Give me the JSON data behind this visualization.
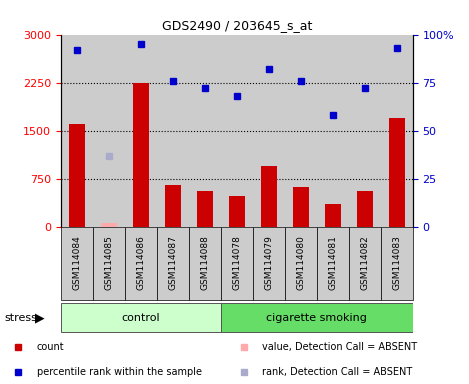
{
  "title": "GDS2490 / 203645_s_at",
  "samples": [
    "GSM114084",
    "GSM114085",
    "GSM114086",
    "GSM114087",
    "GSM114088",
    "GSM114078",
    "GSM114079",
    "GSM114080",
    "GSM114081",
    "GSM114082",
    "GSM114083"
  ],
  "counts": [
    1600,
    60,
    2250,
    650,
    560,
    480,
    950,
    620,
    350,
    560,
    1700
  ],
  "counts_absent": [
    null,
    60,
    null,
    null,
    null,
    null,
    null,
    null,
    null,
    null,
    null
  ],
  "ranks": [
    92,
    null,
    95,
    76,
    72,
    68,
    82,
    76,
    58,
    72,
    93
  ],
  "ranks_absent": [
    null,
    37,
    null,
    null,
    null,
    null,
    null,
    null,
    null,
    null,
    null
  ],
  "groups": [
    "control",
    "control",
    "control",
    "control",
    "control",
    "cigarette smoking",
    "cigarette smoking",
    "cigarette smoking",
    "cigarette smoking",
    "cigarette smoking",
    "cigarette smoking"
  ],
  "control_color": "#ccffcc",
  "smoking_color": "#66dd66",
  "bar_color": "#cc0000",
  "absent_bar_color": "#ffaaaa",
  "dot_color": "#0000cc",
  "absent_dot_color": "#aaaacc",
  "col_bg_color": "#cccccc",
  "ylim_left": [
    0,
    3000
  ],
  "ylim_right": [
    0,
    100
  ],
  "yticks_left": [
    0,
    750,
    1500,
    2250,
    3000
  ],
  "ytick_labels_left": [
    "0",
    "750",
    "1500",
    "2250",
    "3000"
  ],
  "yticks_right": [
    0,
    25,
    50,
    75,
    100
  ],
  "ytick_labels_right": [
    "0",
    "25",
    "50",
    "75",
    "100%"
  ],
  "hlines": [
    750,
    1500,
    2250
  ],
  "background_color": "#ffffff"
}
